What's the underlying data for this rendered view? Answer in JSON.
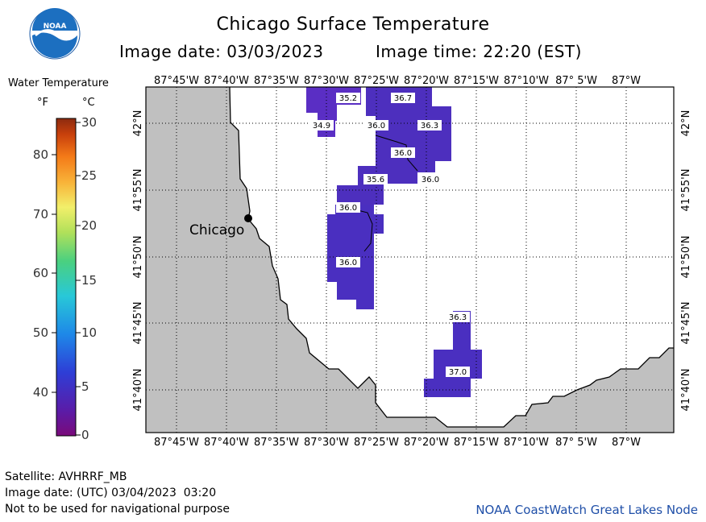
{
  "header": {
    "title": "Chicago Surface Temperature",
    "image_date": "Image date: 03/03/2023",
    "image_time": "Image time: 22:20 (EST)"
  },
  "logo": {
    "text": "NOAA"
  },
  "legend": {
    "title": "Water Temperature",
    "unit_f": "°F",
    "unit_c": "°C",
    "f_ticks": [
      "80",
      "70",
      "60",
      "50",
      "40"
    ],
    "c_ticks": [
      "30",
      "25",
      "20",
      "15",
      "10",
      "5",
      "0"
    ]
  },
  "map": {
    "lon_labels": [
      "87°45'W",
      "87°40'W",
      "87°35'W",
      "87°30'W",
      "87°25'W",
      "87°20'W",
      "87°15'W",
      "87°10'W",
      "87° 5'W",
      "87°W"
    ],
    "lat_labels": [
      "42°N",
      "41°55'N",
      "41°50'N",
      "41°45'N",
      "41°40'N"
    ],
    "city": "Chicago",
    "temperature_labels": [
      "35.2",
      "36.7",
      "34.9",
      "36.0",
      "36.3",
      "36.0",
      "35.6",
      "36.0",
      "36.0",
      "36.0",
      "36.3",
      "37.0"
    ],
    "colors": {
      "land": "#c0c0c0",
      "water_patch": "#5b2fc7",
      "water_patch_dark": "#4a2fb8",
      "grid": "#000000"
    }
  },
  "footer": {
    "satellite": "Satellite: AVHRRF_MB",
    "utc_date": "Image date: (UTC) 03/04/2023  03:20",
    "disclaimer": "Not to be used for navigational purpose",
    "source": "NOAA CoastWatch Great Lakes Node"
  }
}
